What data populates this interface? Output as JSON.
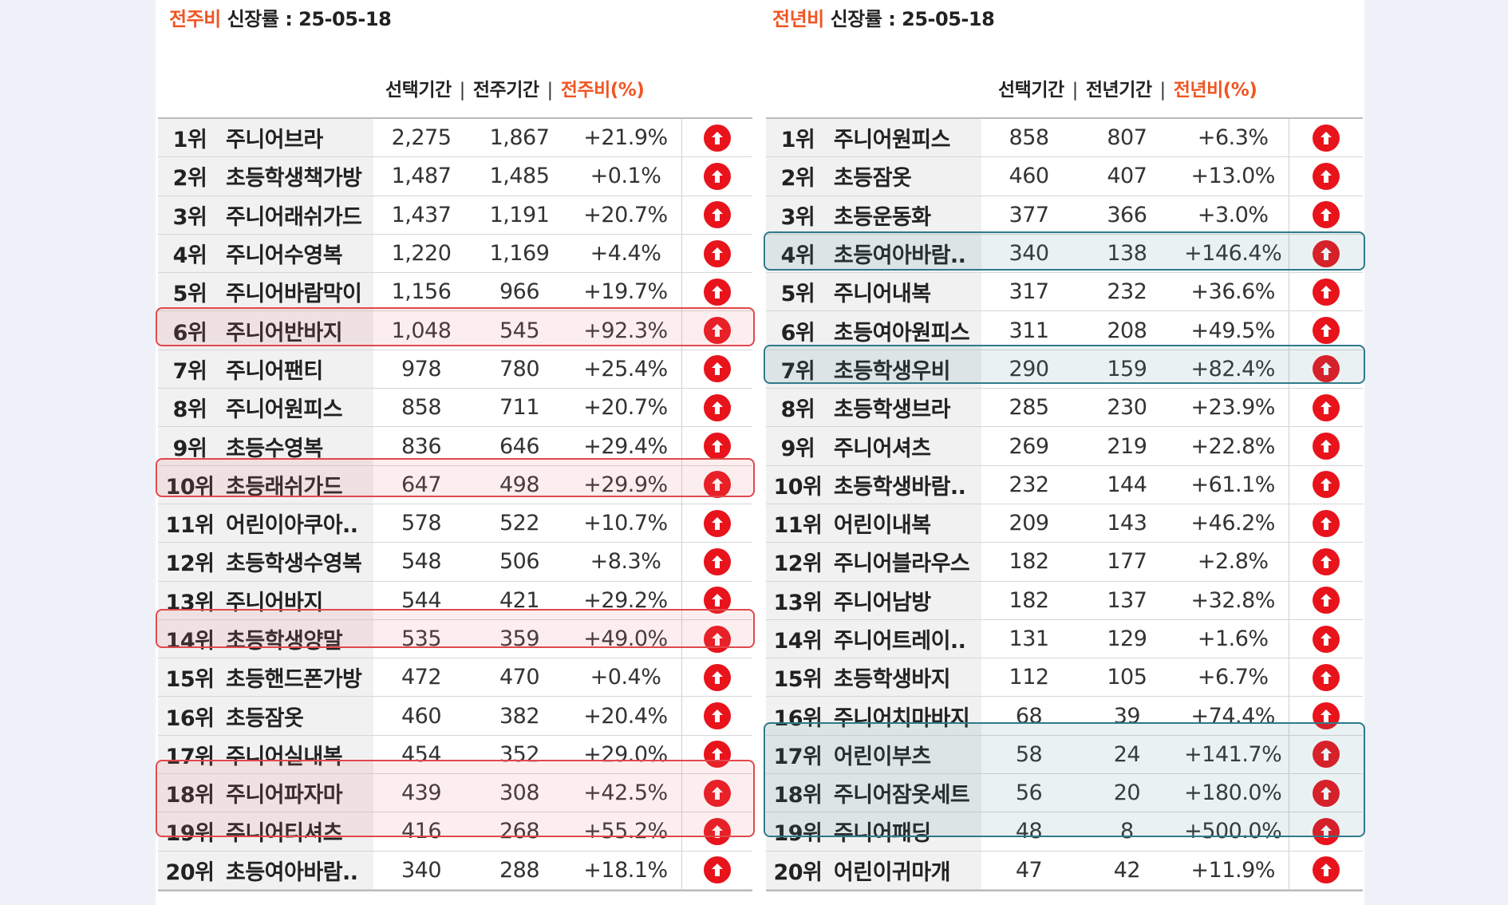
{
  "colors": {
    "accent": "#f05522",
    "arrow": "#e8131b",
    "highlight_wow": "#e2484c",
    "highlight_yoy": "#2f7a8a"
  },
  "wow": {
    "title_accent": "전주비",
    "title_rest": " 신장률  : 25-05-18",
    "headers": [
      "선택기간",
      "전주기간",
      "전주비(%)"
    ],
    "separator": "|",
    "rows": [
      {
        "rank": "1위",
        "name": "주니어브라",
        "cur": "2,275",
        "prev": "1,867",
        "pct": "+21.9%"
      },
      {
        "rank": "2위",
        "name": "초등학생책가방",
        "cur": "1,487",
        "prev": "1,485",
        "pct": "+0.1%"
      },
      {
        "rank": "3위",
        "name": "주니어래쉬가드",
        "cur": "1,437",
        "prev": "1,191",
        "pct": "+20.7%"
      },
      {
        "rank": "4위",
        "name": "주니어수영복",
        "cur": "1,220",
        "prev": "1,169",
        "pct": "+4.4%"
      },
      {
        "rank": "5위",
        "name": "주니어바람막이",
        "cur": "1,156",
        "prev": "966",
        "pct": "+19.7%"
      },
      {
        "rank": "6위",
        "name": "주니어반바지",
        "cur": "1,048",
        "prev": "545",
        "pct": "+92.3%"
      },
      {
        "rank": "7위",
        "name": "주니어팬티",
        "cur": "978",
        "prev": "780",
        "pct": "+25.4%"
      },
      {
        "rank": "8위",
        "name": "주니어원피스",
        "cur": "858",
        "prev": "711",
        "pct": "+20.7%"
      },
      {
        "rank": "9위",
        "name": "초등수영복",
        "cur": "836",
        "prev": "646",
        "pct": "+29.4%"
      },
      {
        "rank": "10위",
        "name": "초등래쉬가드",
        "cur": "647",
        "prev": "498",
        "pct": "+29.9%"
      },
      {
        "rank": "11위",
        "name": "어린이아쿠아..",
        "cur": "578",
        "prev": "522",
        "pct": "+10.7%"
      },
      {
        "rank": "12위",
        "name": "초등학생수영복",
        "cur": "548",
        "prev": "506",
        "pct": "+8.3%"
      },
      {
        "rank": "13위",
        "name": "주니어바지",
        "cur": "544",
        "prev": "421",
        "pct": "+29.2%"
      },
      {
        "rank": "14위",
        "name": "초등학생양말",
        "cur": "535",
        "prev": "359",
        "pct": "+49.0%"
      },
      {
        "rank": "15위",
        "name": "초등핸드폰가방",
        "cur": "472",
        "prev": "470",
        "pct": "+0.4%"
      },
      {
        "rank": "16위",
        "name": "초등잠옷",
        "cur": "460",
        "prev": "382",
        "pct": "+20.4%"
      },
      {
        "rank": "17위",
        "name": "주니어실내복",
        "cur": "454",
        "prev": "352",
        "pct": "+29.0%"
      },
      {
        "rank": "18위",
        "name": "주니어파자마",
        "cur": "439",
        "prev": "308",
        "pct": "+42.5%"
      },
      {
        "rank": "19위",
        "name": "주니어티셔츠",
        "cur": "416",
        "prev": "268",
        "pct": "+55.2%"
      },
      {
        "rank": "20위",
        "name": "초등여아바람..",
        "cur": "340",
        "prev": "288",
        "pct": "+18.1%"
      }
    ],
    "trend_icon": "arrow-up-circle-icon"
  },
  "yoy": {
    "title_accent": "전년비",
    "title_rest": " 신장률 : 25-05-18",
    "headers": [
      "선택기간",
      "전년기간",
      "전년비(%)"
    ],
    "separator": "|",
    "rows": [
      {
        "rank": "1위",
        "name": "주니어원피스",
        "cur": "858",
        "prev": "807",
        "pct": "+6.3%"
      },
      {
        "rank": "2위",
        "name": "초등잠옷",
        "cur": "460",
        "prev": "407",
        "pct": "+13.0%"
      },
      {
        "rank": "3위",
        "name": "초등운동화",
        "cur": "377",
        "prev": "366",
        "pct": "+3.0%"
      },
      {
        "rank": "4위",
        "name": "초등여아바람..",
        "cur": "340",
        "prev": "138",
        "pct": "+146.4%"
      },
      {
        "rank": "5위",
        "name": "주니어내복",
        "cur": "317",
        "prev": "232",
        "pct": "+36.6%"
      },
      {
        "rank": "6위",
        "name": "초등여아원피스",
        "cur": "311",
        "prev": "208",
        "pct": "+49.5%"
      },
      {
        "rank": "7위",
        "name": "초등학생우비",
        "cur": "290",
        "prev": "159",
        "pct": "+82.4%"
      },
      {
        "rank": "8위",
        "name": "초등학생브라",
        "cur": "285",
        "prev": "230",
        "pct": "+23.9%"
      },
      {
        "rank": "9위",
        "name": "주니어셔츠",
        "cur": "269",
        "prev": "219",
        "pct": "+22.8%"
      },
      {
        "rank": "10위",
        "name": "초등학생바람..",
        "cur": "232",
        "prev": "144",
        "pct": "+61.1%"
      },
      {
        "rank": "11위",
        "name": "어린이내복",
        "cur": "209",
        "prev": "143",
        "pct": "+46.2%"
      },
      {
        "rank": "12위",
        "name": "주니어블라우스",
        "cur": "182",
        "prev": "177",
        "pct": "+2.8%"
      },
      {
        "rank": "13위",
        "name": "주니어남방",
        "cur": "182",
        "prev": "137",
        "pct": "+32.8%"
      },
      {
        "rank": "14위",
        "name": "주니어트레이..",
        "cur": "131",
        "prev": "129",
        "pct": "+1.6%"
      },
      {
        "rank": "15위",
        "name": "초등학생바지",
        "cur": "112",
        "prev": "105",
        "pct": "+6.7%"
      },
      {
        "rank": "16위",
        "name": "주니어치마바지",
        "cur": "68",
        "prev": "39",
        "pct": "+74.4%"
      },
      {
        "rank": "17위",
        "name": "어린이부츠",
        "cur": "58",
        "prev": "24",
        "pct": "+141.7%"
      },
      {
        "rank": "18위",
        "name": "주니어잠옷세트",
        "cur": "56",
        "prev": "20",
        "pct": "+180.0%"
      },
      {
        "rank": "19위",
        "name": "주니어패딩",
        "cur": "48",
        "prev": "8",
        "pct": "+500.0%"
      },
      {
        "rank": "20위",
        "name": "어린이귀마개",
        "cur": "47",
        "prev": "42",
        "pct": "+11.9%"
      }
    ],
    "trend_icon": "arrow-up-circle-icon"
  },
  "highlights": {
    "wow_ranks": [
      "6위",
      "10위",
      "14위",
      "18위",
      "19위"
    ],
    "yoy_ranks": [
      "4위",
      "7위",
      "17위",
      "18위",
      "19위"
    ]
  }
}
